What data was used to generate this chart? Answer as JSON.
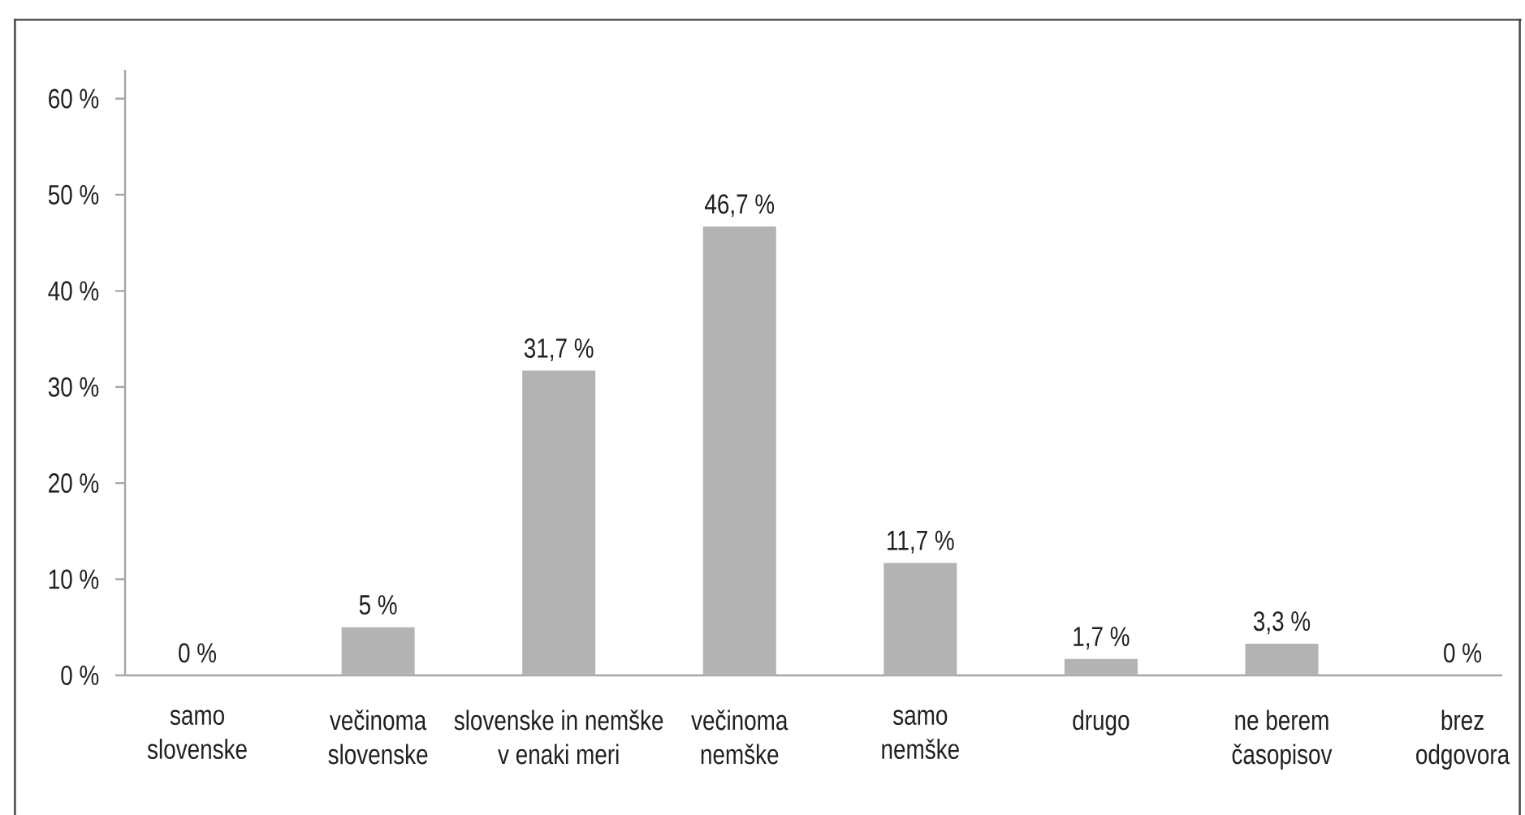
{
  "chart_data": {
    "type": "bar",
    "categories": [
      "samo slovenske",
      "večinoma slovenske",
      "slovenske in nemške v enaki meri",
      "večinoma nemške",
      "samo nemške",
      "drugo",
      "ne berem časopisov",
      "brez odgovora"
    ],
    "values": [
      0,
      5,
      31.7,
      46.7,
      11.7,
      1.7,
      3.3,
      0
    ],
    "value_labels": [
      "0 %",
      "5 %",
      "31,7 %",
      "46,7 %",
      "11,7 %",
      "1,7 %",
      "3,3 %",
      "0 %"
    ],
    "color": "#b3b3b3",
    "ylim": [
      0,
      63
    ],
    "yticks": [
      {
        "value": 0,
        "label": "0 %"
      },
      {
        "value": 10,
        "label": "10 %"
      },
      {
        "value": 20,
        "label": "20 %"
      },
      {
        "value": 30,
        "label": "30 %"
      },
      {
        "value": 40,
        "label": "40 %"
      },
      {
        "value": 50,
        "label": "50 %"
      },
      {
        "value": 60,
        "label": "60 %"
      }
    ]
  }
}
